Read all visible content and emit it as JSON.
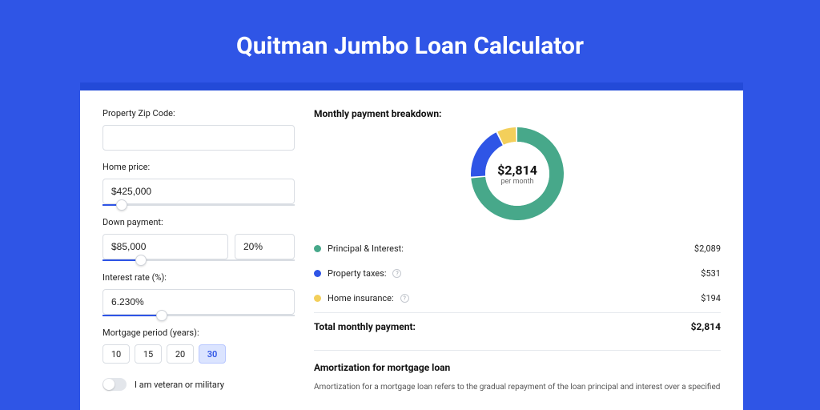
{
  "page": {
    "title": "Quitman Jumbo Loan Calculator",
    "bg_color": "#2f55e6",
    "card_shadow_color": "#234ad8",
    "card_bg": "#ffffff"
  },
  "form": {
    "zip": {
      "label": "Property Zip Code:",
      "value": ""
    },
    "home_price": {
      "label": "Home price:",
      "value": "$425,000",
      "slider_pct": 10
    },
    "down_payment": {
      "label": "Down payment:",
      "value": "$85,000",
      "pct_value": "20%",
      "slider_pct": 20
    },
    "interest_rate": {
      "label": "Interest rate (%):",
      "value": "6.230%",
      "slider_pct": 31
    },
    "mortgage_period": {
      "label": "Mortgage period (years):",
      "options": [
        "10",
        "15",
        "20",
        "30"
      ],
      "active_index": 3
    },
    "veteran": {
      "label": "I am veteran or military",
      "on": false
    }
  },
  "breakdown": {
    "title": "Monthly payment breakdown:",
    "center_amount": "$2,814",
    "center_sub": "per month",
    "donut": {
      "segments": [
        {
          "label": "Principal & Interest:",
          "color": "#47a88a",
          "pct": 74,
          "value": "$2,089",
          "has_info": false
        },
        {
          "label": "Property taxes:",
          "color": "#2f55e6",
          "pct": 19,
          "value": "$531",
          "has_info": true
        },
        {
          "label": "Home insurance:",
          "color": "#f3cf5b",
          "pct": 7,
          "value": "$194",
          "has_info": true
        }
      ]
    },
    "total": {
      "label": "Total monthly payment:",
      "value": "$2,814"
    }
  },
  "amortization": {
    "title": "Amortization for mortgage loan",
    "text": "Amortization for a mortgage loan refers to the gradual repayment of the loan principal and interest over a specified"
  }
}
